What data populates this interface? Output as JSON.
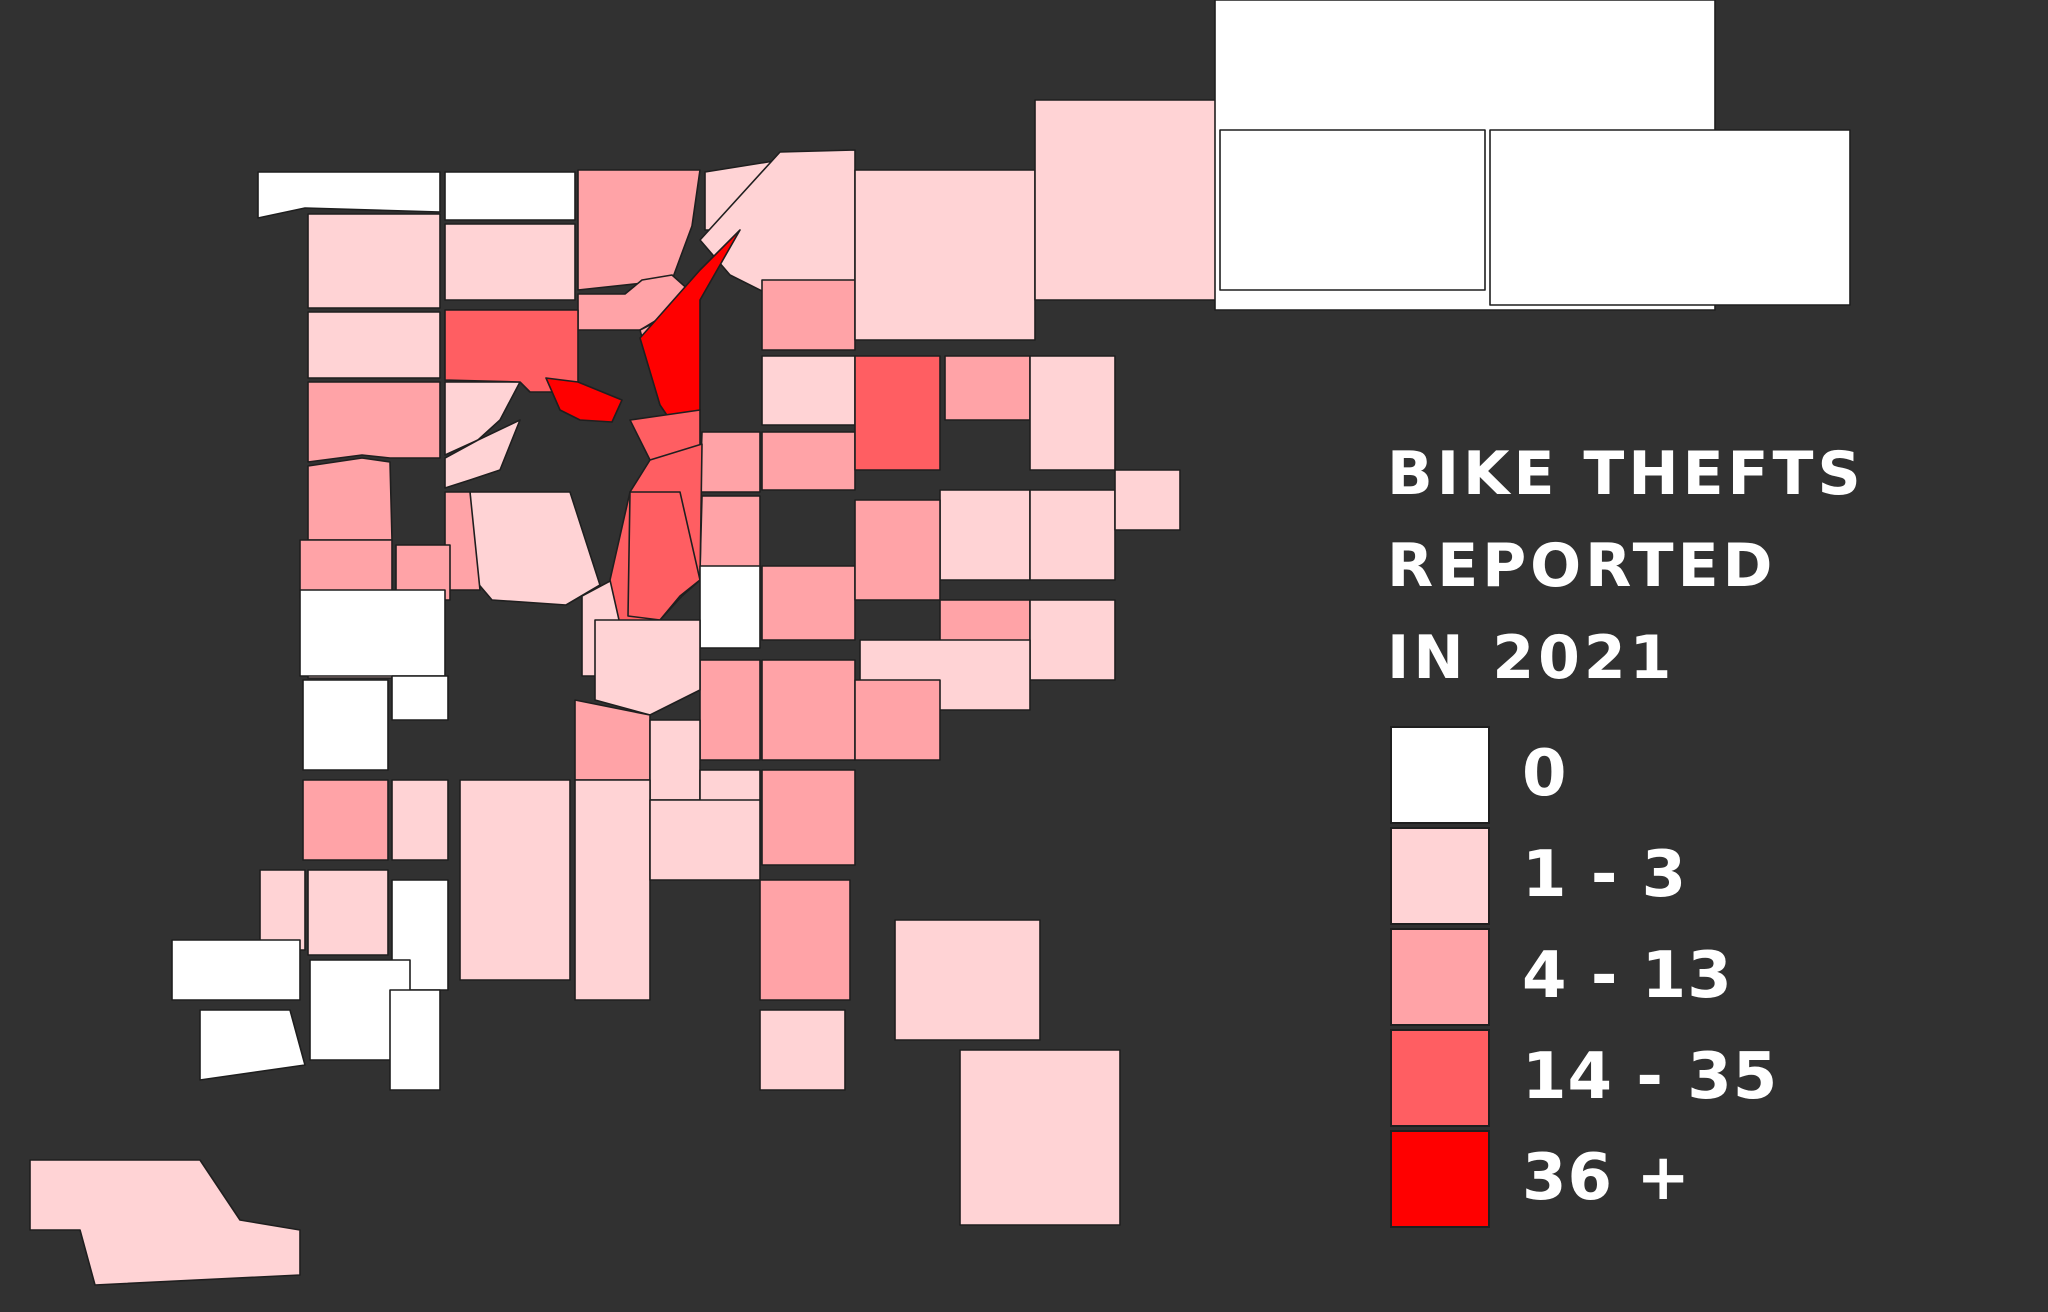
{
  "title_lines": [
    "BIKE THEFTS",
    "REPORTED",
    "IN 2021"
  ],
  "colors": {
    "background": "#313131",
    "border": "#1f1f1f",
    "text": "#ffffff"
  },
  "legend": [
    {
      "label": "0",
      "color": "#ffffff"
    },
    {
      "label": "1 - 3",
      "color": "#ffd3d5"
    },
    {
      "label": "4 - 13",
      "color": "#ffa3a7"
    },
    {
      "label": "14 - 35",
      "color": "#ff5e62"
    },
    {
      "label": "36 +",
      "color": "#ff0000"
    }
  ],
  "neighborhoods": [
    {
      "class": 0
    },
    {
      "class": 1
    },
    {
      "class": 0
    },
    {
      "class": 1
    },
    {
      "class": 2
    },
    {
      "class": 1
    },
    {
      "class": 1
    },
    {
      "class": 1
    },
    {
      "class": 2
    },
    {
      "class": 2
    },
    {
      "class": 1
    },
    {
      "class": 1
    },
    {
      "class": 2
    },
    {
      "class": 3
    },
    {
      "class": 2
    },
    {
      "class": 4
    },
    {
      "class": 4
    },
    {
      "class": 1
    },
    {
      "class": 1
    },
    {
      "class": 2
    },
    {
      "class": 2
    },
    {
      "class": 1
    },
    {
      "class": 2
    },
    {
      "class": 0
    },
    {
      "class": 1
    },
    {
      "class": 3
    },
    {
      "class": 3
    },
    {
      "class": 2
    },
    {
      "class": 2
    },
    {
      "class": 2
    },
    {
      "class": 1
    },
    {
      "class": 2
    },
    {
      "class": 3
    },
    {
      "class": 3
    },
    {
      "class": 0
    },
    {
      "class": 0
    },
    {
      "class": 0
    },
    {
      "class": 2
    },
    {
      "class": 3
    },
    {
      "class": 2
    },
    {
      "class": 1
    },
    {
      "class": 1
    },
    {
      "class": 1
    },
    {
      "class": 1
    },
    {
      "class": 1
    },
    {
      "class": 1
    },
    {
      "class": 2
    },
    {
      "class": 2
    },
    {
      "class": 1
    },
    {
      "class": 2
    },
    {
      "class": 2
    },
    {
      "class": 2
    },
    {
      "class": 1
    },
    {
      "class": 1
    },
    {
      "class": 2
    },
    {
      "class": 1
    },
    {
      "class": 1
    },
    {
      "class": 2
    },
    {
      "class": 0
    },
    {
      "class": 1
    },
    {
      "class": 1
    },
    {
      "class": 0
    },
    {
      "class": 0
    },
    {
      "class": 0
    },
    {
      "class": 0
    },
    {
      "class": 1
    },
    {
      "class": 1
    },
    {
      "class": 1
    },
    {
      "class": 1
    },
    {
      "class": 2
    },
    {
      "class": 1
    },
    {
      "class": 1
    },
    {
      "class": 2
    },
    {
      "class": 1
    },
    {
      "class": 0
    },
    {
      "class": 0
    },
    {
      "class": 0
    },
    {
      "class": 1
    }
  ]
}
